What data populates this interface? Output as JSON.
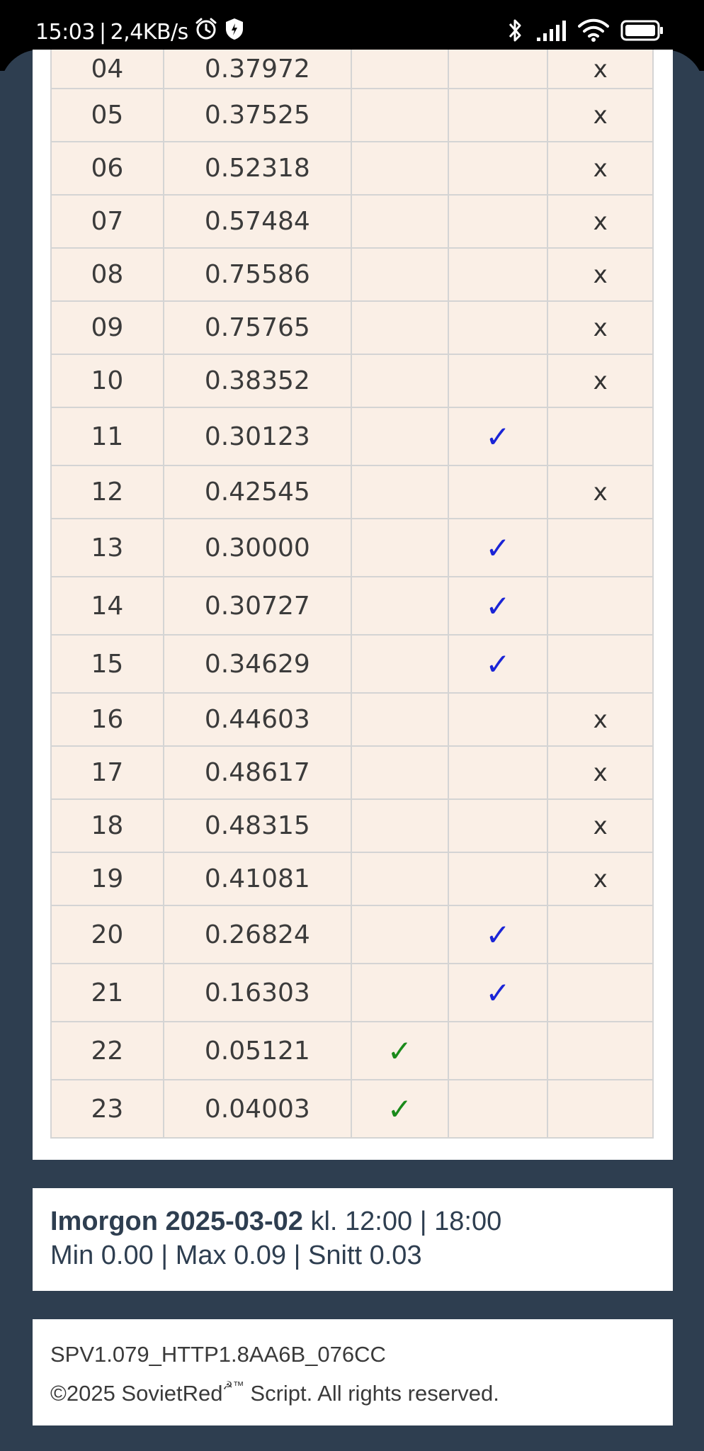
{
  "status_bar": {
    "time": "15:03",
    "separator": "|",
    "net_speed": "2,4KB/s",
    "icons": [
      "alarm-icon",
      "shield-icon",
      "bluetooth-icon",
      "signal-icon",
      "wifi-icon",
      "battery-icon"
    ]
  },
  "table": {
    "rows": [
      {
        "hour": "04",
        "price": "0.37972",
        "low": "",
        "mid": "",
        "high": "x"
      },
      {
        "hour": "05",
        "price": "0.37525",
        "low": "",
        "mid": "",
        "high": "x"
      },
      {
        "hour": "06",
        "price": "0.52318",
        "low": "",
        "mid": "",
        "high": "x"
      },
      {
        "hour": "07",
        "price": "0.57484",
        "low": "",
        "mid": "",
        "high": "x"
      },
      {
        "hour": "08",
        "price": "0.75586",
        "low": "",
        "mid": "",
        "high": "x"
      },
      {
        "hour": "09",
        "price": "0.75765",
        "low": "",
        "mid": "",
        "high": "x"
      },
      {
        "hour": "10",
        "price": "0.38352",
        "low": "",
        "mid": "",
        "high": "x"
      },
      {
        "hour": "11",
        "price": "0.30123",
        "low": "",
        "mid": "✓",
        "high": ""
      },
      {
        "hour": "12",
        "price": "0.42545",
        "low": "",
        "mid": "",
        "high": "x"
      },
      {
        "hour": "13",
        "price": "0.30000",
        "low": "",
        "mid": "✓",
        "high": ""
      },
      {
        "hour": "14",
        "price": "0.30727",
        "low": "",
        "mid": "✓",
        "high": ""
      },
      {
        "hour": "15",
        "price": "0.34629",
        "low": "",
        "mid": "✓",
        "high": ""
      },
      {
        "hour": "16",
        "price": "0.44603",
        "low": "",
        "mid": "",
        "high": "x"
      },
      {
        "hour": "17",
        "price": "0.48617",
        "low": "",
        "mid": "",
        "high": "x"
      },
      {
        "hour": "18",
        "price": "0.48315",
        "low": "",
        "mid": "",
        "high": "x"
      },
      {
        "hour": "19",
        "price": "0.41081",
        "low": "",
        "mid": "",
        "high": "x"
      },
      {
        "hour": "20",
        "price": "0.26824",
        "low": "",
        "mid": "✓",
        "high": ""
      },
      {
        "hour": "21",
        "price": "0.16303",
        "low": "",
        "mid": "✓",
        "high": ""
      },
      {
        "hour": "22",
        "price": "0.05121",
        "low": "✓",
        "mid": "",
        "high": ""
      },
      {
        "hour": "23",
        "price": "0.04003",
        "low": "✓",
        "mid": "",
        "high": ""
      }
    ]
  },
  "tomorrow": {
    "label_bold": "Imorgon 2025-03-02",
    "label_rest": " kl. 12:00 | 18:00",
    "stats": "Min 0.00 | Max 0.09 | Snitt 0.03"
  },
  "footer": {
    "version": "SPV1.079_HTTP1.8AA6B_076CC",
    "copy_prefix": "©2025 SovietRed",
    "copy_sup": "☭™",
    "copy_suffix": " Script. All rights reserved."
  },
  "colors": {
    "page_bg": "#2e3e50",
    "cell_bg": "#faefe6",
    "check_green": "#1a8a1a",
    "check_blue": "#1a24d6"
  }
}
